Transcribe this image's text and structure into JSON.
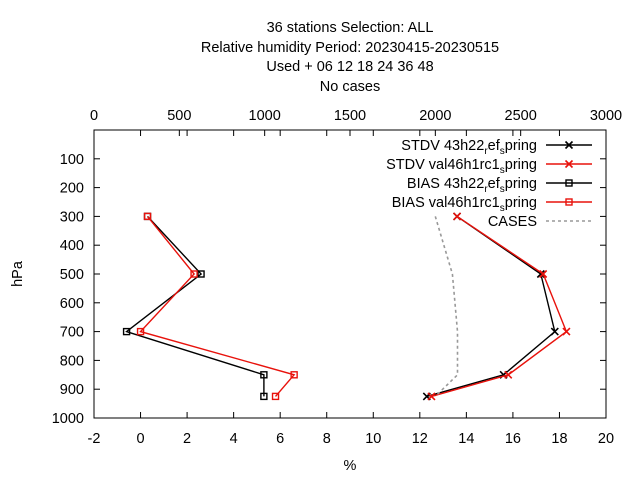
{
  "chart_data": {
    "type": "line",
    "title_lines": [
      "36 stations Selection: ALL",
      "Relative humidity  Period: 20230415-20230515",
      "Used   + 06 12 18 24 36 48",
      "No cases"
    ],
    "xlabel": "%",
    "ylabel": "hPa",
    "xlim": [
      -2,
      20
    ],
    "x_ticks": [
      -2,
      0,
      2,
      4,
      6,
      8,
      10,
      12,
      14,
      16,
      18,
      20
    ],
    "x2label": "",
    "x2lim": [
      0,
      3000
    ],
    "x2_ticks": [
      0,
      500,
      1000,
      1500,
      2000,
      2500,
      3000
    ],
    "ylim": [
      1000,
      0
    ],
    "y_ticks": [
      100,
      200,
      300,
      400,
      500,
      600,
      700,
      800,
      900,
      1000
    ],
    "grid": false,
    "legend_position": "top-right",
    "series": [
      {
        "name": "STDV 43h22_ref_spring",
        "legend": {
          "pre": "STDV 43h22",
          "sub1": "r",
          "mid": "ef",
          "sub2": "s",
          "post": "pring"
        },
        "color": "#000000",
        "marker": "x",
        "axis": "x1",
        "points": [
          [
            13.6,
            300
          ],
          [
            17.2,
            500
          ],
          [
            17.8,
            700
          ],
          [
            15.6,
            850
          ],
          [
            12.3,
            925
          ]
        ]
      },
      {
        "name": "STDV val46h1rc1_spring",
        "legend": {
          "pre": "STDV val46h1rc1",
          "sub1": "",
          "mid": "",
          "sub2": "s",
          "post": "pring"
        },
        "color": "#e8120c",
        "marker": "x",
        "axis": "x1",
        "points": [
          [
            13.6,
            300
          ],
          [
            17.3,
            500
          ],
          [
            18.3,
            700
          ],
          [
            15.8,
            850
          ],
          [
            12.5,
            925
          ]
        ]
      },
      {
        "name": "BIAS 43h22_ref_spring",
        "legend": {
          "pre": "BIAS 43h22",
          "sub1": "r",
          "mid": "ef",
          "sub2": "s",
          "post": "pring"
        },
        "color": "#000000",
        "marker": "square",
        "axis": "x1",
        "points": [
          [
            0.3,
            300
          ],
          [
            2.6,
            500
          ],
          [
            -0.6,
            700
          ],
          [
            5.3,
            850
          ],
          [
            5.3,
            925
          ]
        ]
      },
      {
        "name": "BIAS val46h1rc1_spring",
        "legend": {
          "pre": "BIAS val46h1rc1",
          "sub1": "",
          "mid": "",
          "sub2": "s",
          "post": "pring"
        },
        "color": "#e8120c",
        "marker": "square",
        "axis": "x1",
        "points": [
          [
            0.3,
            300
          ],
          [
            2.3,
            500
          ],
          [
            0.0,
            700
          ],
          [
            6.6,
            850
          ],
          [
            5.8,
            925
          ]
        ]
      },
      {
        "name": "CASES",
        "legend": {
          "pre": "CASES",
          "sub1": "",
          "mid": "",
          "sub2": "",
          "post": ""
        },
        "color": "#999999",
        "marker": "none",
        "dashed": true,
        "axis": "x2",
        "points": [
          [
            2000,
            300
          ],
          [
            2100,
            500
          ],
          [
            2130,
            700
          ],
          [
            2130,
            850
          ],
          [
            2000,
            925
          ]
        ]
      }
    ]
  }
}
